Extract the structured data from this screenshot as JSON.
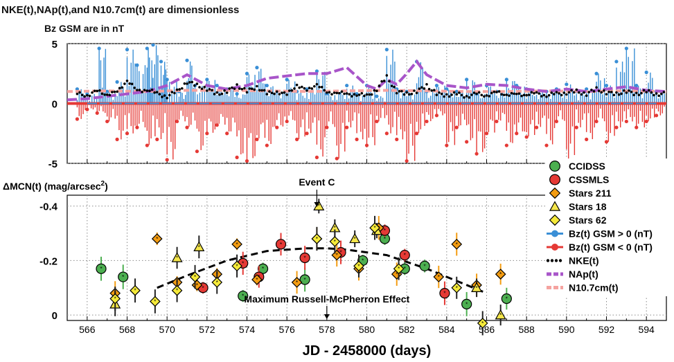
{
  "header": {
    "line1": "NKE(t),NAp(t),and N10.7cm(t) are dimensionless",
    "line2": "Bz GSM are in nT"
  },
  "top_panel": {
    "y_ticks": [
      "5",
      "0",
      "-5"
    ]
  },
  "bottom_panel": {
    "y_label_main": "ΔMCN(t)  (mag/arcsec",
    "y_label_sup": "2",
    "y_label_end": ")",
    "y_ticks": [
      "-0.4",
      "-0.2",
      "0"
    ]
  },
  "annotations": {
    "event_c": "Event C",
    "russell": "Maximum Russell-McPherron Effect"
  },
  "x_axis": {
    "label": "JD - 2458000 (days)",
    "ticks": [
      "566",
      "568",
      "570",
      "572",
      "574",
      "576",
      "578",
      "580",
      "582",
      "584",
      "586",
      "588",
      "590",
      "592",
      "594"
    ]
  },
  "legend": [
    {
      "key": "ccidss",
      "label": "CCIDSS",
      "color": "#4caf50",
      "marker": "circle"
    },
    {
      "key": "cssmls",
      "label": "CSSMLS",
      "color": "#e53935",
      "marker": "circle"
    },
    {
      "key": "stars211",
      "label": "Stars 211",
      "color": "#f39c12",
      "marker": "diamond"
    },
    {
      "key": "stars18",
      "label": "Stars 18",
      "color": "#f5e64b",
      "marker": "triangle"
    },
    {
      "key": "stars62",
      "label": "Stars 62",
      "color": "#f5ea3a",
      "marker": "diamond"
    },
    {
      "key": "bzpos",
      "label": "Bz(t) GSM > 0 (nT)",
      "color": "#3a8fd6",
      "marker": "line-circle"
    },
    {
      "key": "bzneg",
      "label": "Bz(t) GSM < 0 (nT)",
      "color": "#e53935",
      "marker": "line-circle"
    },
    {
      "key": "nke",
      "label": "NKE(t)",
      "color": "#000000",
      "marker": "dots"
    },
    {
      "key": "nap",
      "label": "NAp(t)",
      "color": "#a855c9",
      "marker": "dash"
    },
    {
      "key": "n107",
      "label": "N10.7cm(t)",
      "color": "#f5a3a0",
      "marker": "dash"
    }
  ],
  "chart_data": [
    {
      "type": "line",
      "panel": "top",
      "xlim": [
        565,
        595
      ],
      "ylim": [
        -5,
        5
      ],
      "grid": true,
      "series": [
        {
          "name": "NAp(t)",
          "color": "#a855c9",
          "x": [
            565,
            566,
            567,
            568,
            569,
            570,
            571,
            572,
            573,
            574,
            575,
            576,
            577,
            578,
            579,
            580,
            580.5,
            581,
            581.5,
            582,
            582.5,
            583,
            584,
            585,
            586,
            587,
            588,
            589,
            590,
            591,
            592,
            593,
            594,
            595
          ],
          "y": [
            0.3,
            0.4,
            0.6,
            0.8,
            1.0,
            1.5,
            2.4,
            1.5,
            1.2,
            1.5,
            2.1,
            2.3,
            2.5,
            2.5,
            3.0,
            1.5,
            1.2,
            2.0,
            1.6,
            2.5,
            3.5,
            2.4,
            1.5,
            1.3,
            1.6,
            1.5,
            1.2,
            1.0,
            1.2,
            1.0,
            1.2,
            1.4,
            1.1,
            1.0
          ]
        },
        {
          "name": "N10.7cm(t)",
          "color": "#f5a3a0",
          "x": [
            565,
            567,
            569,
            571,
            573,
            575,
            577,
            579,
            581,
            583,
            585,
            587,
            589,
            591,
            593,
            595
          ],
          "y": [
            1.0,
            1.05,
            1.0,
            1.1,
            1.1,
            1.05,
            1.0,
            1.05,
            1.1,
            1.05,
            1.0,
            1.0,
            1.05,
            1.0,
            1.05,
            1.0
          ]
        },
        {
          "name": "Bz(t) GSM > 0 (nT)",
          "color": "#3a8fd6",
          "x": [
            565.5,
            566,
            566.6,
            567,
            567.5,
            568,
            568.5,
            569,
            569.3,
            569.7,
            570,
            570.6,
            571,
            571.4,
            572,
            572.5,
            573,
            573.5,
            574,
            574.5,
            575,
            575.5,
            576,
            576.5,
            577,
            577.5,
            578,
            578.5,
            579,
            579.5,
            580,
            580.5,
            581,
            581.5,
            582,
            582.5,
            583,
            583.5,
            584,
            584.5,
            585,
            585.5,
            586,
            586.5,
            587,
            587.5,
            588,
            588.5,
            589,
            589.5,
            590,
            590.5,
            591,
            591.5,
            592,
            592.5,
            593,
            593.5,
            594,
            594.5
          ],
          "y": [
            1.2,
            0.8,
            4.6,
            1.0,
            1.8,
            4.5,
            3.2,
            4.6,
            4.9,
            3.5,
            2.0,
            1.0,
            3.6,
            1.5,
            2.0,
            1.5,
            1.2,
            0.8,
            2.5,
            3.0,
            1.5,
            1.0,
            2.0,
            1.0,
            1.2,
            2.7,
            0.8,
            1.0,
            1.5,
            0.8,
            1.5,
            0.6,
            4.5,
            1.2,
            1.0,
            3.5,
            1.0,
            1.5,
            1.2,
            1.0,
            2.0,
            0.8,
            1.5,
            1.0,
            2.0,
            1.5,
            1.2,
            1.0,
            1.0,
            1.2,
            1.6,
            1.0,
            1.2,
            2.5,
            1.5,
            3.5,
            4.6,
            1.5,
            2.6,
            1.0
          ]
        },
        {
          "name": "Bz(t) GSM < 0 (nT)",
          "color": "#e53935",
          "x": [
            565.5,
            566,
            566.5,
            567,
            567.5,
            568,
            568.5,
            569,
            569.5,
            570,
            570.5,
            571,
            571.5,
            572,
            572.5,
            573,
            573.5,
            574,
            574.5,
            575,
            575.5,
            576,
            576.5,
            577,
            577.5,
            578,
            578.5,
            579,
            579.5,
            580,
            580.5,
            581,
            581.5,
            582,
            582.5,
            583,
            583.5,
            584,
            584.5,
            585,
            585.5,
            586,
            586.5,
            587,
            587.5,
            588,
            588.5,
            589,
            589.5,
            590,
            590.5,
            591,
            591.5,
            592,
            592.5,
            593,
            593.5,
            594,
            594.5
          ],
          "y": [
            -1.3,
            -0.5,
            -0.8,
            -1.5,
            -3.0,
            -2.5,
            -2.0,
            -3.5,
            -3.0,
            -4.7,
            -1.5,
            -2.0,
            -4.0,
            -2.5,
            -1.8,
            -2.5,
            -4.5,
            -4.8,
            -3.0,
            -3.5,
            -2.0,
            -1.5,
            -3.0,
            -2.5,
            -4.5,
            -2.0,
            -4.6,
            -2.0,
            -3.0,
            -3.5,
            -1.5,
            -2.5,
            -3.0,
            -4.8,
            -2.5,
            -1.5,
            -1.0,
            -3.5,
            -2.0,
            -3.2,
            -4.2,
            -2.5,
            -1.5,
            -3.5,
            -2.5,
            -2.8,
            -2.0,
            -3.5,
            -1.5,
            -4.8,
            -2.0,
            -3.0,
            -1.5,
            -3.2,
            -2.0,
            -1.5,
            -2.0,
            -1.5,
            -1.0
          ]
        },
        {
          "name": "NKE(t)",
          "color": "#000000",
          "x": [
            565.5,
            566,
            566.5,
            567,
            567.5,
            568,
            568.5,
            569,
            569.5,
            570,
            570.5,
            571,
            571.5,
            572,
            572.5,
            573,
            573.5,
            574,
            574.5,
            575,
            575.5,
            576,
            576.5,
            577,
            577.5,
            578,
            578.5,
            579,
            579.5,
            580,
            580.5,
            581,
            581.5,
            582,
            582.5,
            583,
            583.5,
            584,
            584.5,
            585,
            585.5,
            586,
            586.5,
            587,
            587.5,
            588,
            588.5,
            589,
            589.5,
            590,
            590.5,
            591,
            591.5,
            592,
            592.5,
            593,
            593.5,
            594,
            594.5
          ],
          "y": [
            0.8,
            0.7,
            1.0,
            0.8,
            0.9,
            2.0,
            1.0,
            1.2,
            0.8,
            0.6,
            1.0,
            1.8,
            1.5,
            1.2,
            0.8,
            1.0,
            1.5,
            1.0,
            1.4,
            0.8,
            1.0,
            0.7,
            1.6,
            1.0,
            1.7,
            0.8,
            1.0,
            0.7,
            0.8,
            0.6,
            1.2,
            2.2,
            1.0,
            0.8,
            1.0,
            1.5,
            0.8,
            0.7,
            0.8,
            0.6,
            0.8,
            0.7,
            0.9,
            0.8,
            0.7,
            0.8,
            0.8,
            0.7,
            0.8,
            0.9,
            1.0,
            0.8,
            1.2,
            0.9,
            0.8,
            1.0,
            0.8,
            1.0,
            0.8
          ]
        }
      ]
    },
    {
      "type": "scatter",
      "panel": "bottom",
      "xlim": [
        565,
        595
      ],
      "ylim": [
        0.02,
        -0.44
      ],
      "grid": true,
      "series": [
        {
          "name": "CCIDSS",
          "color": "#4caf50",
          "x": [
            566.7,
            567.8,
            573.8,
            574.8,
            576.9,
            579.8,
            580.9,
            581.9,
            582.9,
            585.0,
            587.0
          ],
          "y": [
            -0.17,
            -0.14,
            -0.07,
            -0.17,
            -0.13,
            -0.2,
            -0.28,
            -0.17,
            -0.18,
            -0.04,
            -0.06
          ]
        },
        {
          "name": "CSSMLS",
          "color": "#e53935",
          "x": [
            571.8,
            573.8,
            574.6,
            575.7,
            576.9,
            578.7,
            580.9,
            581.9,
            583.9
          ],
          "y": [
            -0.1,
            -0.19,
            -0.14,
            -0.26,
            -0.21,
            -0.23,
            -0.31,
            -0.22,
            -0.08
          ]
        },
        {
          "name": "Stars 211",
          "color": "#f39c12",
          "x": [
            567.4,
            569.5,
            570.5,
            571.5,
            572.5,
            573.5,
            574.5,
            576.5,
            577.5,
            578.5,
            579.6,
            580.6,
            581.5,
            583.6,
            584.5,
            585.5,
            586.7
          ],
          "y": [
            -0.08,
            -0.28,
            -0.12,
            -0.11,
            -0.15,
            -0.26,
            -0.13,
            -0.12,
            -0.28,
            -0.22,
            -0.17,
            -0.32,
            -0.15,
            -0.14,
            -0.26,
            -0.11,
            -0.15
          ]
        },
        {
          "name": "Stars 18",
          "color": "#f5e64b",
          "x": [
            567.4,
            570.5,
            571.6,
            577.6,
            578.4,
            579.4,
            580.5,
            585.5,
            586.7
          ],
          "y": [
            -0.04,
            -0.21,
            -0.25,
            -0.4,
            -0.32,
            -0.28,
            -0.31,
            -0.1,
            0.0
          ]
        },
        {
          "name": "Stars 62",
          "color": "#f5ea3a",
          "x": [
            567.4,
            568.4,
            569.4,
            570.5,
            571.4,
            572.5,
            573.5,
            577.5,
            578.4,
            579.6,
            580.4,
            581.6,
            584.5,
            585.8
          ],
          "y": [
            -0.06,
            -0.09,
            -0.05,
            -0.09,
            -0.14,
            -0.12,
            -0.18,
            -0.28,
            -0.27,
            -0.18,
            -0.32,
            -0.17,
            -0.1,
            0.03
          ]
        },
        {
          "name": "fit",
          "color": "#000000",
          "x": [
            569.5,
            571,
            573,
            575,
            577,
            578,
            579,
            581,
            583,
            585,
            586
          ],
          "y": [
            -0.1,
            -0.145,
            -0.2,
            -0.235,
            -0.245,
            -0.245,
            -0.24,
            -0.22,
            -0.17,
            -0.11,
            -0.08
          ]
        }
      ]
    }
  ]
}
